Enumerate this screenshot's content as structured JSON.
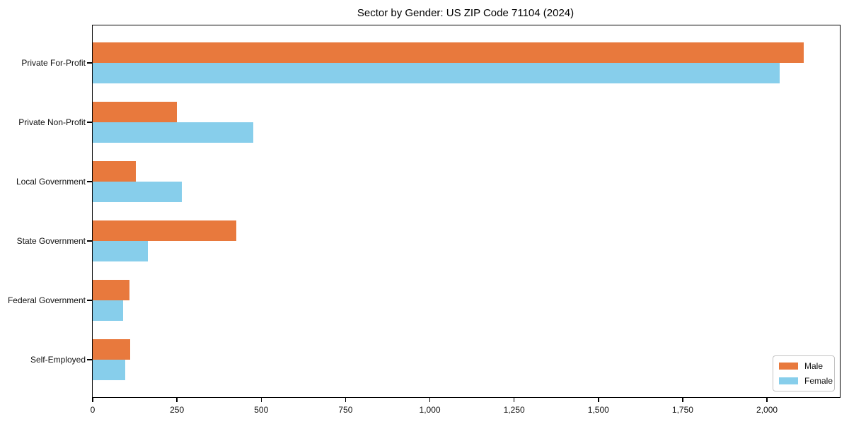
{
  "chart_data": {
    "type": "bar",
    "orientation": "horizontal",
    "title": "Sector by Gender: US ZIP Code 71104 (2024)",
    "categories": [
      "Private For-Profit",
      "Private Non-Profit",
      "Local Government",
      "State Government",
      "Federal Government",
      "Self-Employed"
    ],
    "series": [
      {
        "name": "Male",
        "color": "#e8793d",
        "values": [
          2108,
          249,
          128,
          426,
          109,
          111
        ]
      },
      {
        "name": "Female",
        "color": "#87ceeb",
        "values": [
          2037,
          477,
          264,
          164,
          90,
          97
        ]
      }
    ],
    "xlabel": "",
    "ylabel": "",
    "xlim": [
      0,
      2216
    ],
    "xticks": [
      0,
      250,
      500,
      750,
      1000,
      1250,
      1500,
      1750,
      2000
    ],
    "xtick_labels": [
      "0",
      "250",
      "500",
      "750",
      "1,000",
      "1,250",
      "1,500",
      "1,750",
      "2,000"
    ],
    "grid": false,
    "legend": {
      "position": "lower right",
      "entries": [
        "Male",
        "Female"
      ]
    }
  }
}
